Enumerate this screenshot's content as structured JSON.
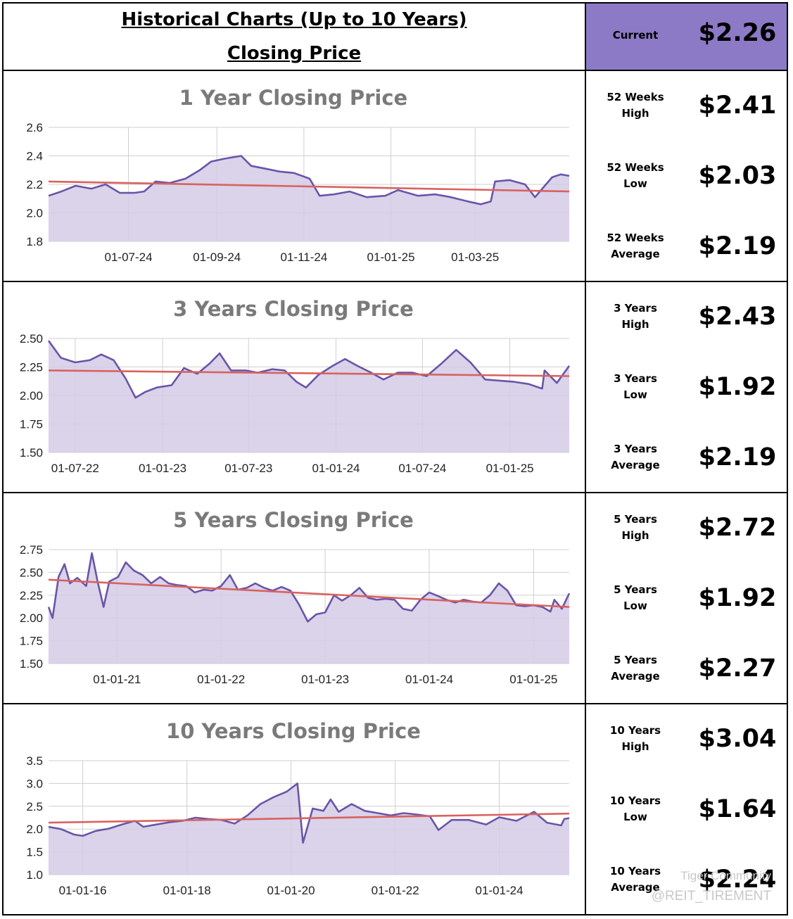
{
  "header": {
    "title_line1": "Historical Charts (Up to 10 Years)",
    "title_line2": "Closing Price",
    "current_label": "Current",
    "current_value": "$2.26"
  },
  "colors": {
    "price_line": "#6a55a8",
    "price_fill": "#d3cbe6",
    "trend_line": "#d9625f",
    "header_bg": "#8c7ac6",
    "title_text": "#7a7a7a",
    "grid": "#cfcfcf"
  },
  "stats": [
    [
      {
        "label": "52 Weeks\nHigh",
        "value": "$2.41"
      },
      {
        "label": "52 Weeks\nLow",
        "value": "$2.03"
      },
      {
        "label": "52 Weeks\nAverage",
        "value": "$2.19"
      }
    ],
    [
      {
        "label": "3 Years\nHigh",
        "value": "$2.43"
      },
      {
        "label": "3 Years\nLow",
        "value": "$1.92"
      },
      {
        "label": "3 Years\nAverage",
        "value": "$2.19"
      }
    ],
    [
      {
        "label": "5 Years\nHigh",
        "value": "$2.72"
      },
      {
        "label": "5 Years\nLow",
        "value": "$1.92"
      },
      {
        "label": "5 Years\nAverage",
        "value": "$2.27"
      }
    ],
    [
      {
        "label": "10 Years\nHigh",
        "value": "$3.04"
      },
      {
        "label": "10 Years\nLow",
        "value": "$1.64"
      },
      {
        "label": "10 Years\nAverage",
        "value": "$2.24"
      }
    ]
  ],
  "watermark": {
    "line1": "Tiger Community",
    "line2": "@REIT_TIREMENT"
  },
  "chart_data": [
    {
      "type": "area",
      "title": "1 Year Closing Price",
      "x_tick_labels": [
        "01-07-24",
        "01-09-24",
        "01-11-24",
        "01-01-25",
        "01-03-25"
      ],
      "x_range": [
        "2024-05-06",
        "2025-05-06"
      ],
      "ylim": [
        1.8,
        2.6
      ],
      "y_ticks": [
        "1.8",
        "2.0",
        "2.2",
        "2.4",
        "2.6"
      ],
      "grid": true,
      "series": [
        {
          "kind": "price",
          "points": [
            [
              "2024-05-06",
              2.12
            ],
            [
              "2024-05-15",
              2.15
            ],
            [
              "2024-05-25",
              2.19
            ],
            [
              "2024-06-05",
              2.17
            ],
            [
              "2024-06-15",
              2.2
            ],
            [
              "2024-06-25",
              2.14
            ],
            [
              "2024-07-05",
              2.14
            ],
            [
              "2024-07-12",
              2.15
            ],
            [
              "2024-07-20",
              2.22
            ],
            [
              "2024-07-30",
              2.21
            ],
            [
              "2024-08-10",
              2.24
            ],
            [
              "2024-08-20",
              2.3
            ],
            [
              "2024-08-28",
              2.36
            ],
            [
              "2024-09-06",
              2.38
            ],
            [
              "2024-09-18",
              2.4
            ],
            [
              "2024-09-25",
              2.33
            ],
            [
              "2024-10-05",
              2.31
            ],
            [
              "2024-10-15",
              2.29
            ],
            [
              "2024-10-25",
              2.28
            ],
            [
              "2024-11-05",
              2.24
            ],
            [
              "2024-11-12",
              2.12
            ],
            [
              "2024-11-22",
              2.13
            ],
            [
              "2024-12-03",
              2.15
            ],
            [
              "2024-12-15",
              2.11
            ],
            [
              "2024-12-28",
              2.12
            ],
            [
              "2025-01-06",
              2.16
            ],
            [
              "2025-01-20",
              2.12
            ],
            [
              "2025-02-01",
              2.13
            ],
            [
              "2025-02-12",
              2.11
            ],
            [
              "2025-02-24",
              2.08
            ],
            [
              "2025-03-05",
              2.06
            ],
            [
              "2025-03-12",
              2.08
            ],
            [
              "2025-03-15",
              2.22
            ],
            [
              "2025-03-25",
              2.23
            ],
            [
              "2025-04-05",
              2.2
            ],
            [
              "2025-04-12",
              2.11
            ],
            [
              "2025-04-18",
              2.18
            ],
            [
              "2025-04-24",
              2.25
            ],
            [
              "2025-04-30",
              2.27
            ],
            [
              "2025-05-06",
              2.26
            ]
          ]
        },
        {
          "kind": "trend",
          "points": [
            [
              "2024-05-06",
              2.22
            ],
            [
              "2025-05-06",
              2.15
            ]
          ]
        }
      ]
    },
    {
      "type": "area",
      "title": "3 Years Closing Price",
      "x_tick_labels": [
        "01-07-22",
        "01-01-23",
        "01-07-23",
        "01-01-24",
        "01-07-24",
        "01-01-25"
      ],
      "x_range": [
        "2022-05-06",
        "2025-05-06"
      ],
      "ylim": [
        1.5,
        2.5
      ],
      "y_ticks": [
        "1.50",
        "1.75",
        "2.00",
        "2.25",
        "2.50"
      ],
      "grid": true,
      "series": [
        {
          "kind": "price",
          "points": [
            [
              "2022-05-06",
              2.48
            ],
            [
              "2022-06-01",
              2.33
            ],
            [
              "2022-07-01",
              2.29
            ],
            [
              "2022-08-01",
              2.31
            ],
            [
              "2022-08-25",
              2.36
            ],
            [
              "2022-09-20",
              2.31
            ],
            [
              "2022-10-15",
              2.15
            ],
            [
              "2022-11-05",
              1.98
            ],
            [
              "2022-11-25",
              2.03
            ],
            [
              "2022-12-20",
              2.07
            ],
            [
              "2023-01-20",
              2.09
            ],
            [
              "2023-02-15",
              2.24
            ],
            [
              "2023-03-15",
              2.19
            ],
            [
              "2023-04-10",
              2.28
            ],
            [
              "2023-05-01",
              2.37
            ],
            [
              "2023-05-25",
              2.22
            ],
            [
              "2023-06-25",
              2.22
            ],
            [
              "2023-07-20",
              2.2
            ],
            [
              "2023-08-20",
              2.23
            ],
            [
              "2023-09-15",
              2.22
            ],
            [
              "2023-10-10",
              2.12
            ],
            [
              "2023-10-30",
              2.07
            ],
            [
              "2023-11-25",
              2.18
            ],
            [
              "2023-12-25",
              2.26
            ],
            [
              "2024-01-20",
              2.32
            ],
            [
              "2024-02-15",
              2.26
            ],
            [
              "2024-03-15",
              2.2
            ],
            [
              "2024-04-10",
              2.14
            ],
            [
              "2024-05-10",
              2.2
            ],
            [
              "2024-06-10",
              2.2
            ],
            [
              "2024-07-10",
              2.17
            ],
            [
              "2024-08-10",
              2.28
            ],
            [
              "2024-09-10",
              2.4
            ],
            [
              "2024-10-10",
              2.29
            ],
            [
              "2024-11-10",
              2.14
            ],
            [
              "2024-12-10",
              2.13
            ],
            [
              "2025-01-10",
              2.12
            ],
            [
              "2025-02-10",
              2.1
            ],
            [
              "2025-03-10",
              2.06
            ],
            [
              "2025-03-15",
              2.22
            ],
            [
              "2025-04-10",
              2.11
            ],
            [
              "2025-05-06",
              2.26
            ]
          ]
        },
        {
          "kind": "trend",
          "points": [
            [
              "2022-05-06",
              2.22
            ],
            [
              "2025-05-06",
              2.17
            ]
          ]
        }
      ]
    },
    {
      "type": "area",
      "title": "5 Years Closing Price",
      "x_tick_labels": [
        "01-01-21",
        "01-01-22",
        "01-01-23",
        "01-01-24",
        "01-01-25"
      ],
      "x_range": [
        "2020-05-06",
        "2025-05-06"
      ],
      "ylim": [
        1.5,
        2.75
      ],
      "y_ticks": [
        "1.50",
        "1.75",
        "2.00",
        "2.25",
        "2.50",
        "2.75"
      ],
      "grid": true,
      "series": [
        {
          "kind": "price",
          "points": [
            [
              "2020-05-06",
              2.12
            ],
            [
              "2020-05-20",
              2.0
            ],
            [
              "2020-06-10",
              2.45
            ],
            [
              "2020-07-01",
              2.59
            ],
            [
              "2020-07-20",
              2.38
            ],
            [
              "2020-08-15",
              2.44
            ],
            [
              "2020-09-15",
              2.35
            ],
            [
              "2020-10-05",
              2.71
            ],
            [
              "2020-10-25",
              2.4
            ],
            [
              "2020-11-15",
              2.12
            ],
            [
              "2020-12-05",
              2.4
            ],
            [
              "2021-01-05",
              2.45
            ],
            [
              "2021-02-01",
              2.61
            ],
            [
              "2021-03-01",
              2.52
            ],
            [
              "2021-04-01",
              2.47
            ],
            [
              "2021-05-01",
              2.38
            ],
            [
              "2021-06-01",
              2.45
            ],
            [
              "2021-07-01",
              2.38
            ],
            [
              "2021-08-01",
              2.36
            ],
            [
              "2021-09-01",
              2.35
            ],
            [
              "2021-10-01",
              2.28
            ],
            [
              "2021-11-01",
              2.31
            ],
            [
              "2021-12-01",
              2.3
            ],
            [
              "2022-01-01",
              2.35
            ],
            [
              "2022-02-01",
              2.47
            ],
            [
              "2022-03-01",
              2.31
            ],
            [
              "2022-04-01",
              2.33
            ],
            [
              "2022-05-01",
              2.38
            ],
            [
              "2022-06-01",
              2.33
            ],
            [
              "2022-07-01",
              2.3
            ],
            [
              "2022-08-01",
              2.34
            ],
            [
              "2022-09-01",
              2.3
            ],
            [
              "2022-10-01",
              2.15
            ],
            [
              "2022-11-01",
              1.96
            ],
            [
              "2022-12-01",
              2.04
            ],
            [
              "2023-01-01",
              2.06
            ],
            [
              "2023-02-01",
              2.25
            ],
            [
              "2023-03-01",
              2.19
            ],
            [
              "2023-04-01",
              2.25
            ],
            [
              "2023-05-01",
              2.33
            ],
            [
              "2023-06-01",
              2.22
            ],
            [
              "2023-07-01",
              2.2
            ],
            [
              "2023-08-01",
              2.21
            ],
            [
              "2023-09-01",
              2.2
            ],
            [
              "2023-10-01",
              2.1
            ],
            [
              "2023-11-01",
              2.08
            ],
            [
              "2023-12-01",
              2.2
            ],
            [
              "2024-01-01",
              2.28
            ],
            [
              "2024-02-01",
              2.24
            ],
            [
              "2024-03-01",
              2.2
            ],
            [
              "2024-04-01",
              2.17
            ],
            [
              "2024-05-01",
              2.2
            ],
            [
              "2024-06-01",
              2.18
            ],
            [
              "2024-07-01",
              2.17
            ],
            [
              "2024-08-01",
              2.25
            ],
            [
              "2024-09-01",
              2.38
            ],
            [
              "2024-10-01",
              2.3
            ],
            [
              "2024-11-01",
              2.14
            ],
            [
              "2024-12-01",
              2.13
            ],
            [
              "2025-01-01",
              2.14
            ],
            [
              "2025-02-01",
              2.12
            ],
            [
              "2025-03-01",
              2.07
            ],
            [
              "2025-03-15",
              2.2
            ],
            [
              "2025-04-10",
              2.1
            ],
            [
              "2025-05-06",
              2.27
            ]
          ]
        },
        {
          "kind": "trend",
          "points": [
            [
              "2020-05-06",
              2.42
            ],
            [
              "2025-05-06",
              2.12
            ]
          ]
        }
      ]
    },
    {
      "type": "area",
      "title": "10 Years Closing Price",
      "x_tick_labels": [
        "01-01-16",
        "01-01-18",
        "01-01-20",
        "01-01-22",
        "01-01-24"
      ],
      "x_range": [
        "2015-05-06",
        "2025-05-06"
      ],
      "ylim": [
        1.0,
        3.5
      ],
      "y_ticks": [
        "1.0",
        "1.5",
        "2.0",
        "2.5",
        "3.0",
        "3.5"
      ],
      "grid": true,
      "series": [
        {
          "kind": "price",
          "points": [
            [
              "2015-05-06",
              2.05
            ],
            [
              "2015-08-01",
              2.0
            ],
            [
              "2015-11-01",
              1.88
            ],
            [
              "2016-01-01",
              1.85
            ],
            [
              "2016-04-01",
              1.96
            ],
            [
              "2016-07-01",
              2.01
            ],
            [
              "2016-10-01",
              2.1
            ],
            [
              "2017-01-01",
              2.18
            ],
            [
              "2017-03-01",
              2.05
            ],
            [
              "2017-06-01",
              2.1
            ],
            [
              "2017-09-01",
              2.15
            ],
            [
              "2017-12-01",
              2.18
            ],
            [
              "2018-03-01",
              2.25
            ],
            [
              "2018-06-01",
              2.22
            ],
            [
              "2018-09-01",
              2.2
            ],
            [
              "2018-12-01",
              2.12
            ],
            [
              "2019-03-01",
              2.3
            ],
            [
              "2019-06-01",
              2.55
            ],
            [
              "2019-09-01",
              2.7
            ],
            [
              "2019-12-01",
              2.82
            ],
            [
              "2020-02-15",
              3.0
            ],
            [
              "2020-03-25",
              1.7
            ],
            [
              "2020-06-01",
              2.45
            ],
            [
              "2020-08-15",
              2.4
            ],
            [
              "2020-10-05",
              2.65
            ],
            [
              "2020-12-01",
              2.38
            ],
            [
              "2021-03-01",
              2.55
            ],
            [
              "2021-06-01",
              2.4
            ],
            [
              "2021-09-01",
              2.35
            ],
            [
              "2021-12-01",
              2.3
            ],
            [
              "2022-03-01",
              2.35
            ],
            [
              "2022-06-01",
              2.32
            ],
            [
              "2022-09-01",
              2.28
            ],
            [
              "2022-11-01",
              1.98
            ],
            [
              "2023-02-01",
              2.2
            ],
            [
              "2023-06-01",
              2.2
            ],
            [
              "2023-10-01",
              2.1
            ],
            [
              "2024-01-01",
              2.26
            ],
            [
              "2024-05-01",
              2.18
            ],
            [
              "2024-09-01",
              2.38
            ],
            [
              "2024-12-01",
              2.14
            ],
            [
              "2025-03-10",
              2.08
            ],
            [
              "2025-04-01",
              2.22
            ],
            [
              "2025-05-06",
              2.24
            ]
          ]
        },
        {
          "kind": "trend",
          "points": [
            [
              "2015-05-06",
              2.14
            ],
            [
              "2025-05-06",
              2.34
            ]
          ]
        }
      ]
    }
  ]
}
